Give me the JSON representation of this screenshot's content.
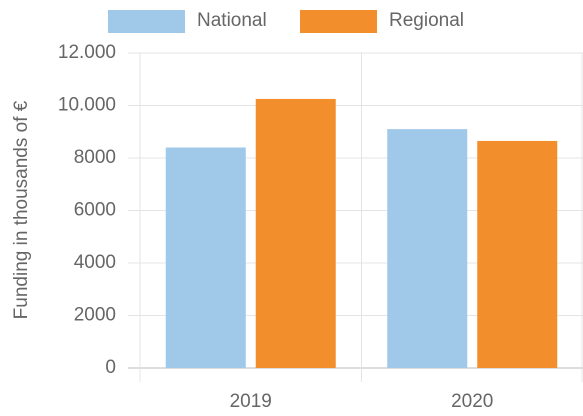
{
  "chart_data": {
    "type": "bar",
    "categories": [
      "2019",
      "2020"
    ],
    "series": [
      {
        "name": "National",
        "color": "#9fc8e9",
        "values": [
          8400,
          9100
        ]
      },
      {
        "name": "Regional",
        "color": "#f28f2c",
        "values": [
          10250,
          8650
        ]
      }
    ],
    "y_label": "Funding in thousands of €",
    "ylim": [
      0,
      12000
    ],
    "yticks": [
      0,
      2000,
      4000,
      6000,
      8000,
      {
        "value": 10000,
        "label": "10.000"
      },
      {
        "value": 12000,
        "label": "12.000"
      }
    ],
    "grid": true,
    "legend": "top"
  }
}
